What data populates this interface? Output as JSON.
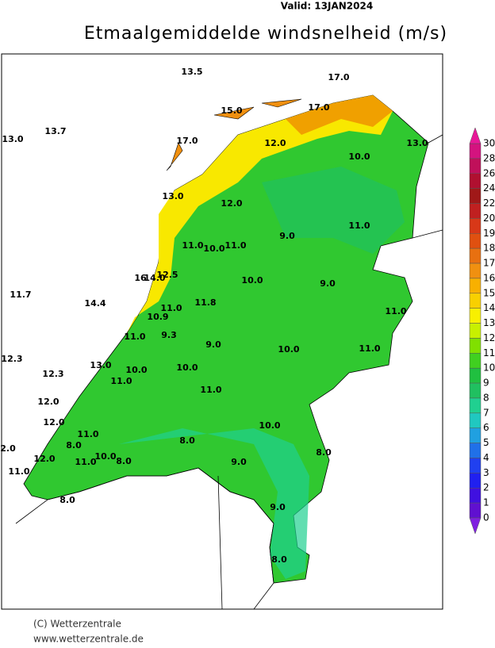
{
  "header": {
    "valid": "Valid:  13JAN2024",
    "title": "Etmaalgemiddelde windsnelheid (m/s)"
  },
  "map": {
    "labels": [
      "13.5",
      "17.0",
      "15.0",
      "17.0",
      "13.0",
      "13.7",
      "17.0",
      "12.0",
      "13.0",
      "10.0",
      "13.0",
      "12.0",
      "9.0",
      "11.0",
      "11.0",
      "10.0",
      "11.0",
      "10.0",
      "9.0",
      "16",
      "14.0",
      "12.5",
      "11.7",
      "14.4",
      "11.8",
      "11.0",
      "10.9",
      "11.0",
      "9.3",
      "11.0",
      "9.0",
      "10.0",
      "11.0",
      "12.3",
      "13.0",
      "12.3",
      "10.0",
      "10.0",
      "11.0",
      "11.0",
      "12.0",
      "12.0",
      "10.0",
      "11.0",
      "8.0",
      "8.0",
      "2.0",
      "8.0",
      "9.0",
      "12.0",
      "11.0",
      "10.0",
      "8.0",
      "11.0",
      "8.0",
      "9.0",
      "8.0"
    ]
  },
  "legend": {
    "labels": [
      "30",
      "28",
      "26",
      "24",
      "22",
      "20",
      "19",
      "18",
      "17",
      "16",
      "15",
      "14",
      "13",
      "12",
      "11",
      "10",
      "9",
      "8",
      "7",
      "6",
      "5",
      "4",
      "3",
      "2",
      "1",
      "0"
    ],
    "colors": [
      "#d4137f",
      "#c0105a",
      "#b01030",
      "#a01818",
      "#c02020",
      "#d83818",
      "#e05010",
      "#e87010",
      "#f09010",
      "#f8b000",
      "#f8d000",
      "#f8f000",
      "#c8f000",
      "#80e000",
      "#40d020",
      "#20c040",
      "#20c060",
      "#20d090",
      "#20c8c0",
      "#20a0e0",
      "#2070e8",
      "#2040f0",
      "#2020f0",
      "#4010e0",
      "#6010d0"
    ],
    "top_color": "#e81898",
    "bottom_color": "#8020e0"
  },
  "footer": {
    "copyright": "(C) Wetterzentrale",
    "url": "www.wetterzentrale.de"
  }
}
